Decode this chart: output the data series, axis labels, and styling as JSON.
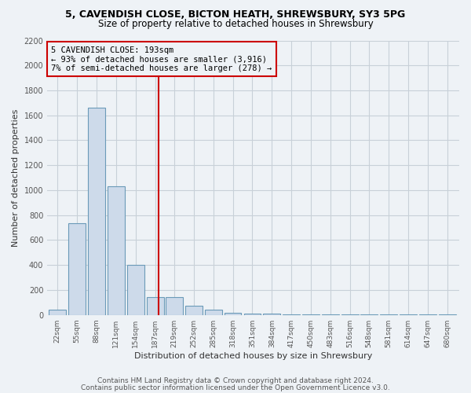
{
  "title1": "5, CAVENDISH CLOSE, BICTON HEATH, SHREWSBURY, SY3 5PG",
  "title2": "Size of property relative to detached houses in Shrewsbury",
  "xlabel": "Distribution of detached houses by size in Shrewsbury",
  "ylabel": "Number of detached properties",
  "annotation_line1": "5 CAVENDISH CLOSE: 193sqm",
  "annotation_line2": "← 93% of detached houses are smaller (3,916)",
  "annotation_line3": "7% of semi-detached houses are larger (278) →",
  "footer1": "Contains HM Land Registry data © Crown copyright and database right 2024.",
  "footer2": "Contains public sector information licensed under the Open Government Licence v3.0.",
  "property_line_x": 193,
  "categories": [
    22,
    55,
    88,
    121,
    154,
    187,
    219,
    252,
    285,
    318,
    351,
    384,
    417,
    450,
    483,
    516,
    548,
    581,
    614,
    647,
    680
  ],
  "values": [
    45,
    735,
    1660,
    1030,
    400,
    145,
    140,
    75,
    45,
    20,
    10,
    8,
    5,
    5,
    3,
    3,
    2,
    2,
    2,
    2,
    2
  ],
  "ylim": [
    0,
    2200
  ],
  "yticks": [
    0,
    200,
    400,
    600,
    800,
    1000,
    1200,
    1400,
    1600,
    1800,
    2000,
    2200
  ],
  "bar_color": "#cddaea",
  "bar_edge_color": "#6b9ab8",
  "vline_color": "#cc0000",
  "annotation_box_edge": "#cc0000",
  "grid_color": "#c8d0d8",
  "bg_color": "#eef2f6",
  "title_fontsize": 9,
  "subtitle_fontsize": 8.5,
  "xlabel_fontsize": 8,
  "ylabel_fontsize": 8,
  "tick_fontsize": 7,
  "xtick_fontsize": 6.5,
  "footer_fontsize": 6.5,
  "annot_fontsize": 7.5
}
